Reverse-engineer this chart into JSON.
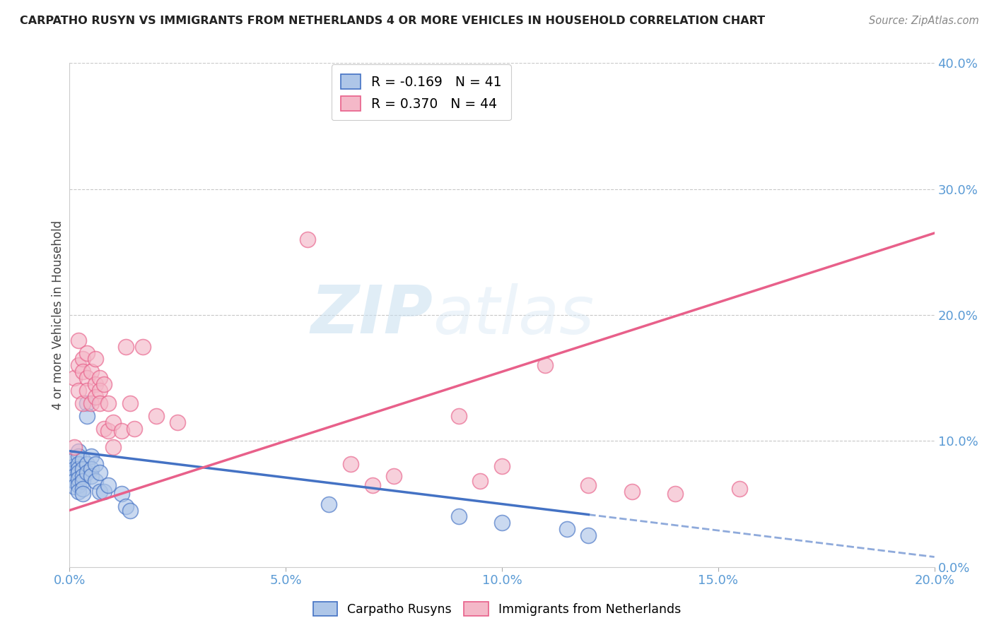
{
  "title": "CARPATHO RUSYN VS IMMIGRANTS FROM NETHERLANDS 4 OR MORE VEHICLES IN HOUSEHOLD CORRELATION CHART",
  "source": "Source: ZipAtlas.com",
  "ylabel": "4 or more Vehicles in Household",
  "legend_label1": "Carpatho Rusyns",
  "legend_label2": "Immigrants from Netherlands",
  "R1": -0.169,
  "N1": 41,
  "R2": 0.37,
  "N2": 44,
  "color1": "#aec6e8",
  "color2": "#f4b8c8",
  "line_color1": "#4472c4",
  "line_color2": "#e8608a",
  "xlim": [
    0.0,
    0.2
  ],
  "ylim": [
    0.0,
    0.4
  ],
  "xticks": [
    0.0,
    0.05,
    0.1,
    0.15,
    0.2
  ],
  "yticks": [
    0.0,
    0.1,
    0.2,
    0.3,
    0.4
  ],
  "tick_color": "#5b9bd5",
  "watermark_zip": "ZIP",
  "watermark_atlas": "atlas",
  "blue_points": [
    [
      0.001,
      0.08
    ],
    [
      0.001,
      0.085
    ],
    [
      0.001,
      0.078
    ],
    [
      0.001,
      0.072
    ],
    [
      0.001,
      0.068
    ],
    [
      0.001,
      0.064
    ],
    [
      0.002,
      0.092
    ],
    [
      0.002,
      0.088
    ],
    [
      0.002,
      0.082
    ],
    [
      0.002,
      0.078
    ],
    [
      0.002,
      0.075
    ],
    [
      0.002,
      0.07
    ],
    [
      0.002,
      0.065
    ],
    [
      0.002,
      0.06
    ],
    [
      0.003,
      0.085
    ],
    [
      0.003,
      0.078
    ],
    [
      0.003,
      0.072
    ],
    [
      0.003,
      0.068
    ],
    [
      0.003,
      0.062
    ],
    [
      0.003,
      0.058
    ],
    [
      0.004,
      0.13
    ],
    [
      0.004,
      0.12
    ],
    [
      0.004,
      0.082
    ],
    [
      0.004,
      0.075
    ],
    [
      0.005,
      0.088
    ],
    [
      0.005,
      0.078
    ],
    [
      0.005,
      0.072
    ],
    [
      0.006,
      0.082
    ],
    [
      0.006,
      0.068
    ],
    [
      0.007,
      0.075
    ],
    [
      0.007,
      0.06
    ],
    [
      0.008,
      0.06
    ],
    [
      0.009,
      0.065
    ],
    [
      0.012,
      0.058
    ],
    [
      0.013,
      0.048
    ],
    [
      0.014,
      0.045
    ],
    [
      0.06,
      0.05
    ],
    [
      0.09,
      0.04
    ],
    [
      0.1,
      0.035
    ],
    [
      0.115,
      0.03
    ],
    [
      0.12,
      0.025
    ]
  ],
  "pink_points": [
    [
      0.001,
      0.15
    ],
    [
      0.001,
      0.095
    ],
    [
      0.002,
      0.18
    ],
    [
      0.002,
      0.16
    ],
    [
      0.002,
      0.14
    ],
    [
      0.003,
      0.165
    ],
    [
      0.003,
      0.155
    ],
    [
      0.003,
      0.13
    ],
    [
      0.004,
      0.17
    ],
    [
      0.004,
      0.15
    ],
    [
      0.004,
      0.14
    ],
    [
      0.005,
      0.155
    ],
    [
      0.005,
      0.13
    ],
    [
      0.006,
      0.165
    ],
    [
      0.006,
      0.145
    ],
    [
      0.006,
      0.135
    ],
    [
      0.007,
      0.15
    ],
    [
      0.007,
      0.14
    ],
    [
      0.007,
      0.13
    ],
    [
      0.008,
      0.145
    ],
    [
      0.008,
      0.11
    ],
    [
      0.009,
      0.13
    ],
    [
      0.009,
      0.108
    ],
    [
      0.01,
      0.115
    ],
    [
      0.01,
      0.095
    ],
    [
      0.012,
      0.108
    ],
    [
      0.013,
      0.175
    ],
    [
      0.014,
      0.13
    ],
    [
      0.015,
      0.11
    ],
    [
      0.017,
      0.175
    ],
    [
      0.02,
      0.12
    ],
    [
      0.025,
      0.115
    ],
    [
      0.055,
      0.26
    ],
    [
      0.065,
      0.082
    ],
    [
      0.07,
      0.065
    ],
    [
      0.075,
      0.072
    ],
    [
      0.09,
      0.12
    ],
    [
      0.095,
      0.068
    ],
    [
      0.1,
      0.08
    ],
    [
      0.11,
      0.16
    ],
    [
      0.12,
      0.065
    ],
    [
      0.13,
      0.06
    ],
    [
      0.14,
      0.058
    ],
    [
      0.155,
      0.062
    ]
  ]
}
